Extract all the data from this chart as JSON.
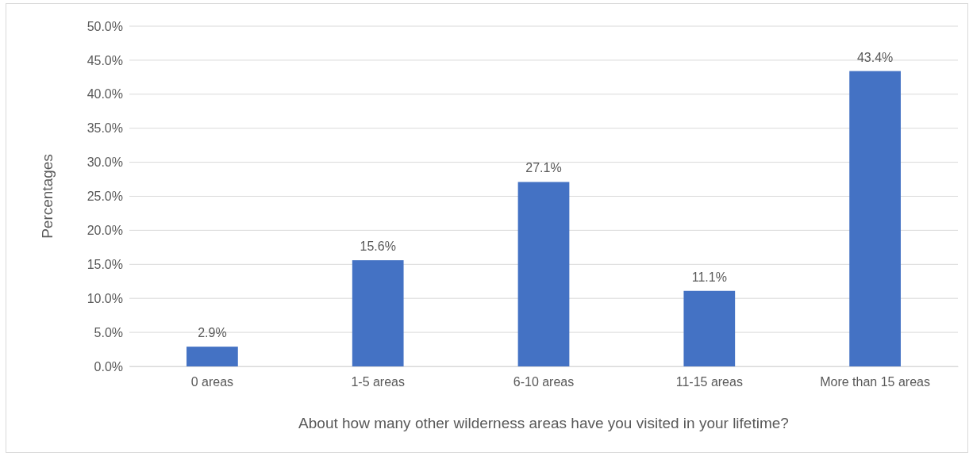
{
  "chart_data": {
    "type": "bar",
    "xlabel": "About how many other wilderness areas have you visited in your lifetime?",
    "ylabel": "Percentages",
    "categories": [
      "0 areas",
      "1-5 areas",
      "6-10 areas",
      "11-15 areas",
      "More than 15 areas"
    ],
    "values": [
      2.9,
      15.6,
      27.1,
      11.1,
      43.4
    ],
    "value_labels": [
      "2.9%",
      "15.6%",
      "27.1%",
      "11.1%",
      "43.4%"
    ],
    "color": "#4472c4",
    "ylim": [
      0,
      50
    ],
    "yticks": [
      {
        "value": 0,
        "label": "0.0%"
      },
      {
        "value": 5,
        "label": "5.0%"
      },
      {
        "value": 10,
        "label": "10.0%"
      },
      {
        "value": 15,
        "label": "15.0%"
      },
      {
        "value": 20,
        "label": "20.0%"
      },
      {
        "value": 25,
        "label": "25.0%"
      },
      {
        "value": 30,
        "label": "30.0%"
      },
      {
        "value": 35,
        "label": "35.0%"
      },
      {
        "value": 40,
        "label": "40.0%"
      },
      {
        "value": 45,
        "label": "45.0%"
      },
      {
        "value": 50,
        "label": "50.0%"
      }
    ],
    "grid": "y"
  }
}
